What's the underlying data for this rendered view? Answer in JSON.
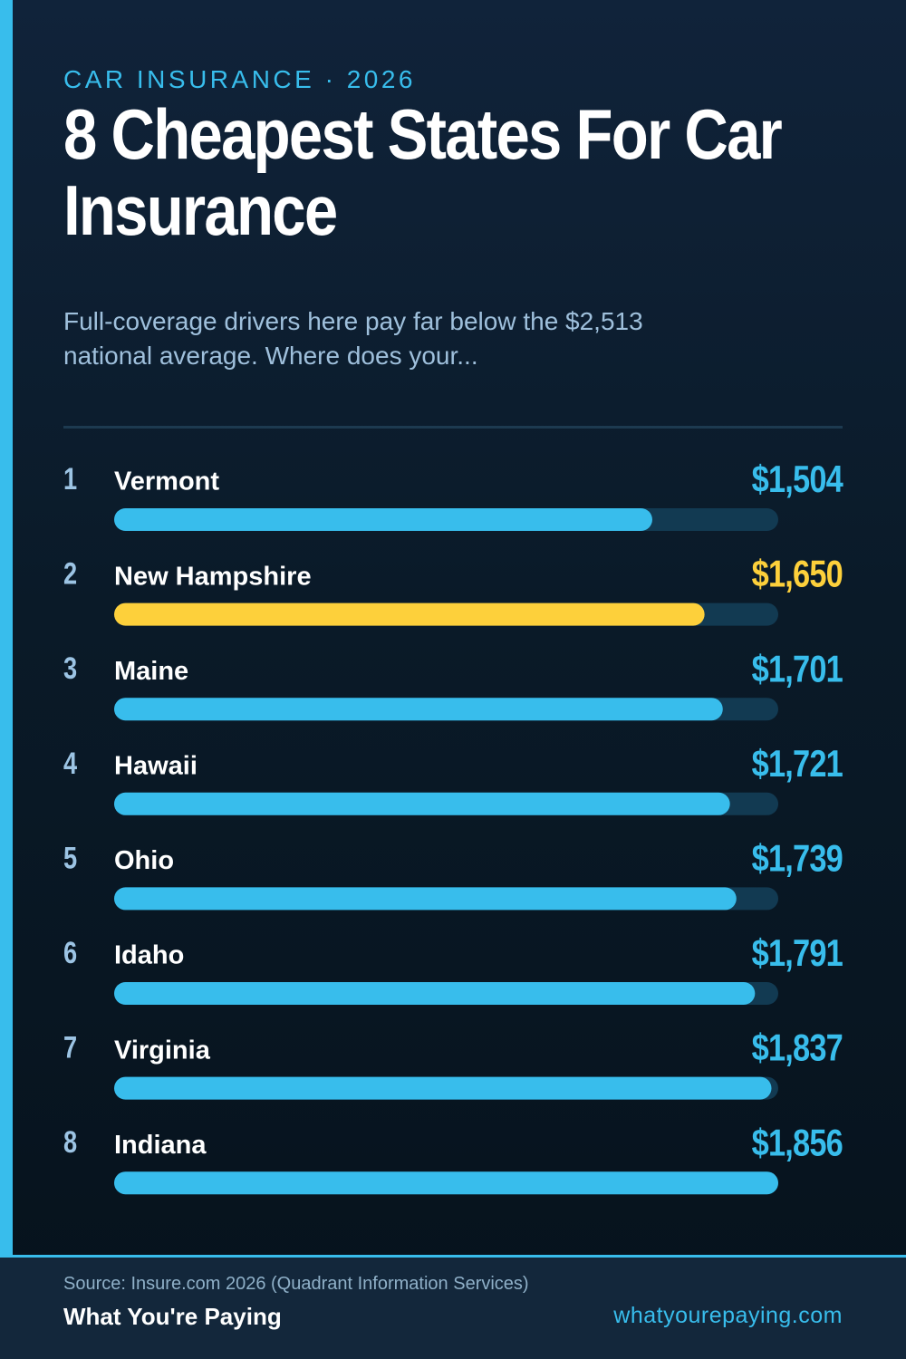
{
  "chart_data": {
    "type": "bar",
    "eyebrow": "CAR INSURANCE · 2026",
    "title": "8 Cheapest States For Car Insurance",
    "subtitle": "Full-coverage drivers here pay far below the $2,513 national average. Where does your...",
    "ranks": [
      1,
      2,
      3,
      4,
      5,
      6,
      7,
      8
    ],
    "categories": [
      "Vermont",
      "New Hampshire",
      "Maine",
      "Hawaii",
      "Ohio",
      "Idaho",
      "Virginia",
      "Indiana"
    ],
    "values": [
      1504,
      1650,
      1701,
      1721,
      1739,
      1791,
      1837,
      1856
    ],
    "value_labels": [
      "$1,504",
      "$1,650",
      "$1,701",
      "$1,721",
      "$1,739",
      "$1,791",
      "$1,837",
      "$1,856"
    ],
    "colors": [
      "#38bdec",
      "#fdd03b",
      "#38bdec",
      "#38bdec",
      "#38bdec",
      "#38bdec",
      "#38bdec",
      "#38bdec"
    ],
    "xlim": [
      0,
      1856
    ],
    "source": "Source: Insure.com 2026 (Quadrant Information Services)",
    "brand": "What You're Paying",
    "url": "whatyourepaying.com"
  }
}
